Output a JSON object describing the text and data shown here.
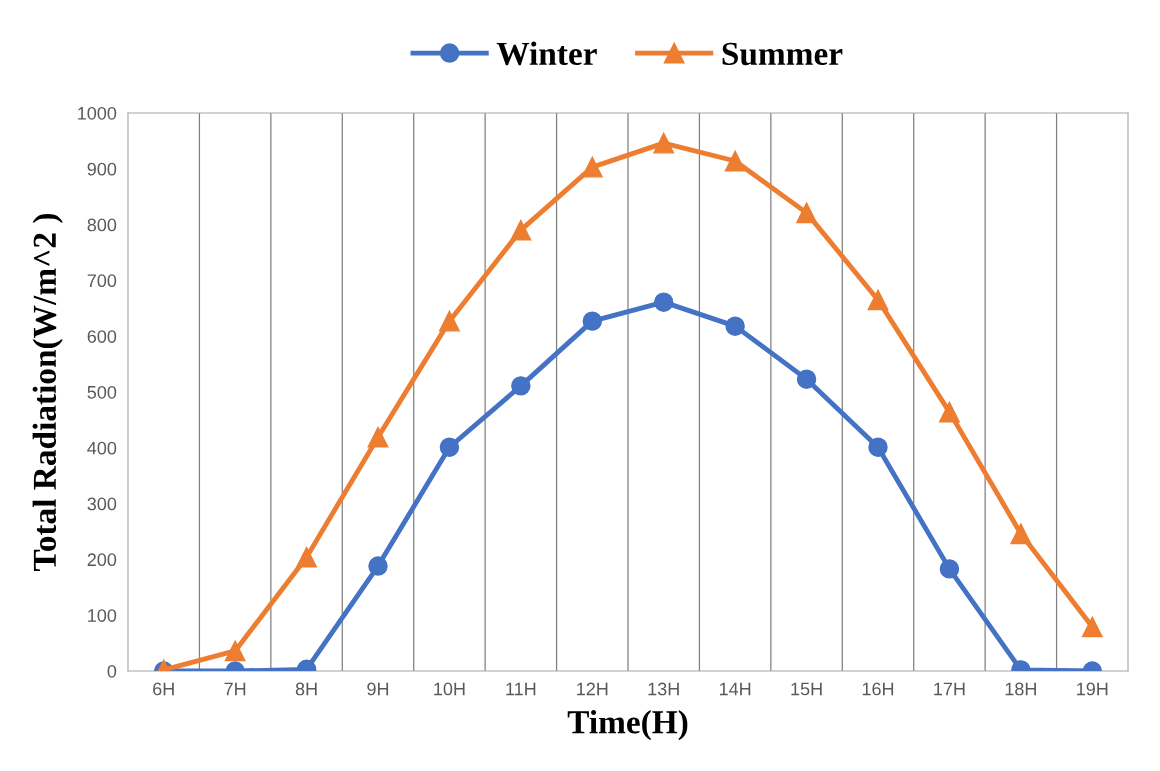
{
  "chart_data": {
    "type": "line",
    "xlabel": "Time(H)",
    "ylabel": "Total Radiation(W/m^2 )",
    "categories": [
      "6H",
      "7H",
      "8H",
      "9H",
      "10H",
      "11H",
      "12H",
      "13H",
      "14H",
      "15H",
      "16H",
      "17H",
      "18H",
      "19H"
    ],
    "series": [
      {
        "name": "Winter",
        "color": "#4472c4",
        "marker": "circle",
        "values": [
          0,
          0,
          3,
          188,
          401,
          511,
          627,
          661,
          618,
          523,
          401,
          183,
          2,
          0
        ]
      },
      {
        "name": "Summer",
        "color": "#ed7d31",
        "marker": "triangle",
        "values": [
          2,
          36,
          204,
          419,
          627,
          790,
          903,
          946,
          914,
          821,
          665,
          464,
          246,
          79
        ]
      }
    ],
    "ylim": [
      0,
      1000
    ],
    "yticks": [
      0,
      100,
      200,
      300,
      400,
      500,
      600,
      700,
      800,
      900,
      1000
    ],
    "grid": "x",
    "legend": "top",
    "line_style": "solid"
  }
}
